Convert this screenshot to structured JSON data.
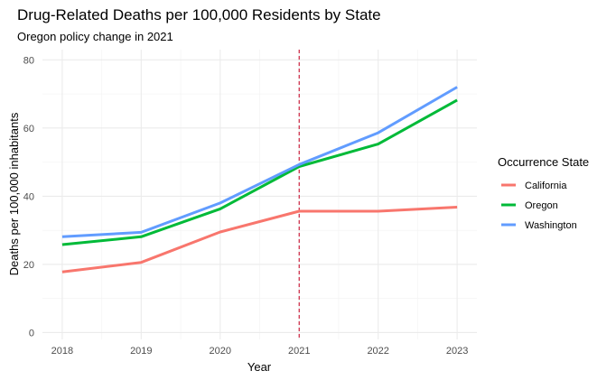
{
  "chart_data": {
    "type": "line",
    "title": "Drug-Related Deaths per 100,000 Residents by State",
    "subtitle": "Oregon policy change in 2021",
    "xlabel": "Year",
    "ylabel": "Deaths per 100,000 inhabitants",
    "x": [
      2018,
      2019,
      2020,
      2021,
      2022,
      2023
    ],
    "xlim": [
      2017.75,
      2023.25
    ],
    "ylim": [
      -2,
      83
    ],
    "yticks": [
      0,
      20,
      40,
      60,
      80
    ],
    "grid": true,
    "legend": {
      "title": "Occurrence State",
      "position": "right"
    },
    "reference_line": {
      "x": 2021,
      "style": "dashed",
      "color": "#c8102e"
    },
    "series": [
      {
        "name": "California",
        "color": "#f8766d",
        "values": [
          17.8,
          20.6,
          29.5,
          35.6,
          35.6,
          36.8
        ]
      },
      {
        "name": "Oregon",
        "color": "#00ba38",
        "values": [
          25.8,
          28.1,
          36.3,
          48.7,
          55.3,
          68.2
        ]
      },
      {
        "name": "Washington",
        "color": "#619cff",
        "values": [
          28.1,
          29.4,
          38.0,
          49.3,
          58.6,
          72.0
        ]
      }
    ]
  }
}
